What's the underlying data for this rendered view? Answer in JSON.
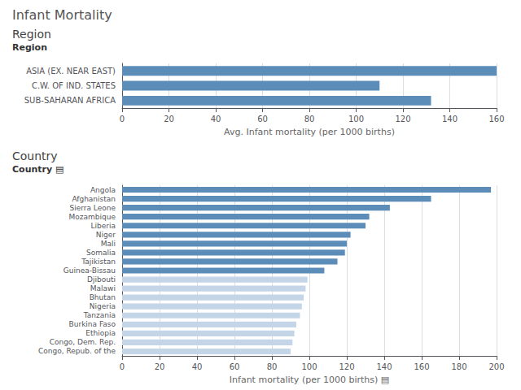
{
  "title": "Infant Mortality",
  "chart_data": [
    {
      "type": "bar",
      "orientation": "horizontal",
      "title": "Region",
      "subtitle": "Region",
      "categories": [
        "SUB-SAHARAN AFRICA",
        "C.W. OF IND. STATES",
        "ASIA (EX. NEAR EAST)"
      ],
      "values": [
        132,
        110,
        160
      ],
      "color": "#5b8db8",
      "xlabel": "Avg. Infant mortality (per 1000 births)",
      "xlim": [
        0,
        160
      ],
      "xticks": [
        0,
        20,
        40,
        60,
        80,
        100,
        120,
        140,
        160
      ],
      "grid": true
    },
    {
      "type": "bar",
      "orientation": "horizontal",
      "title": "Country",
      "subtitle": "Country ▤",
      "categories": [
        "Angola",
        "Afghanistan",
        "Sierra Leone",
        "Mozambique",
        "Liberia",
        "Niger",
        "Mali",
        "Somalia",
        "Tajikistan",
        "Guinea-Bissau",
        "Djibouti",
        "Malawi",
        "Bhutan",
        "Nigeria",
        "Tanzania",
        "Burkina Faso",
        "Ethiopia",
        "Congo, Dem. Rep.",
        "Congo, Repub. of the"
      ],
      "values": [
        197,
        165,
        143,
        132,
        130,
        122,
        120,
        119,
        115,
        108,
        99,
        98,
        97,
        96,
        95,
        93,
        92,
        91,
        90
      ],
      "colors": [
        "#5b8db8",
        "#5b8db8",
        "#5b8db8",
        "#5b8db8",
        "#5b8db8",
        "#5b8db8",
        "#5b8db8",
        "#5b8db8",
        "#5b8db8",
        "#5b8db8",
        "#c5d5e8",
        "#c5d5e8",
        "#c5d5e8",
        "#c5d5e8",
        "#c5d5e8",
        "#c5d5e8",
        "#c5d5e8",
        "#c5d5e8",
        "#c5d5e8"
      ],
      "xlabel": "Infant mortality (per 1000 births) ▤",
      "xlim": [
        0,
        200
      ],
      "xticks": [
        0,
        20,
        40,
        60,
        80,
        100,
        120,
        140,
        160,
        180,
        200
      ],
      "grid": true
    }
  ]
}
